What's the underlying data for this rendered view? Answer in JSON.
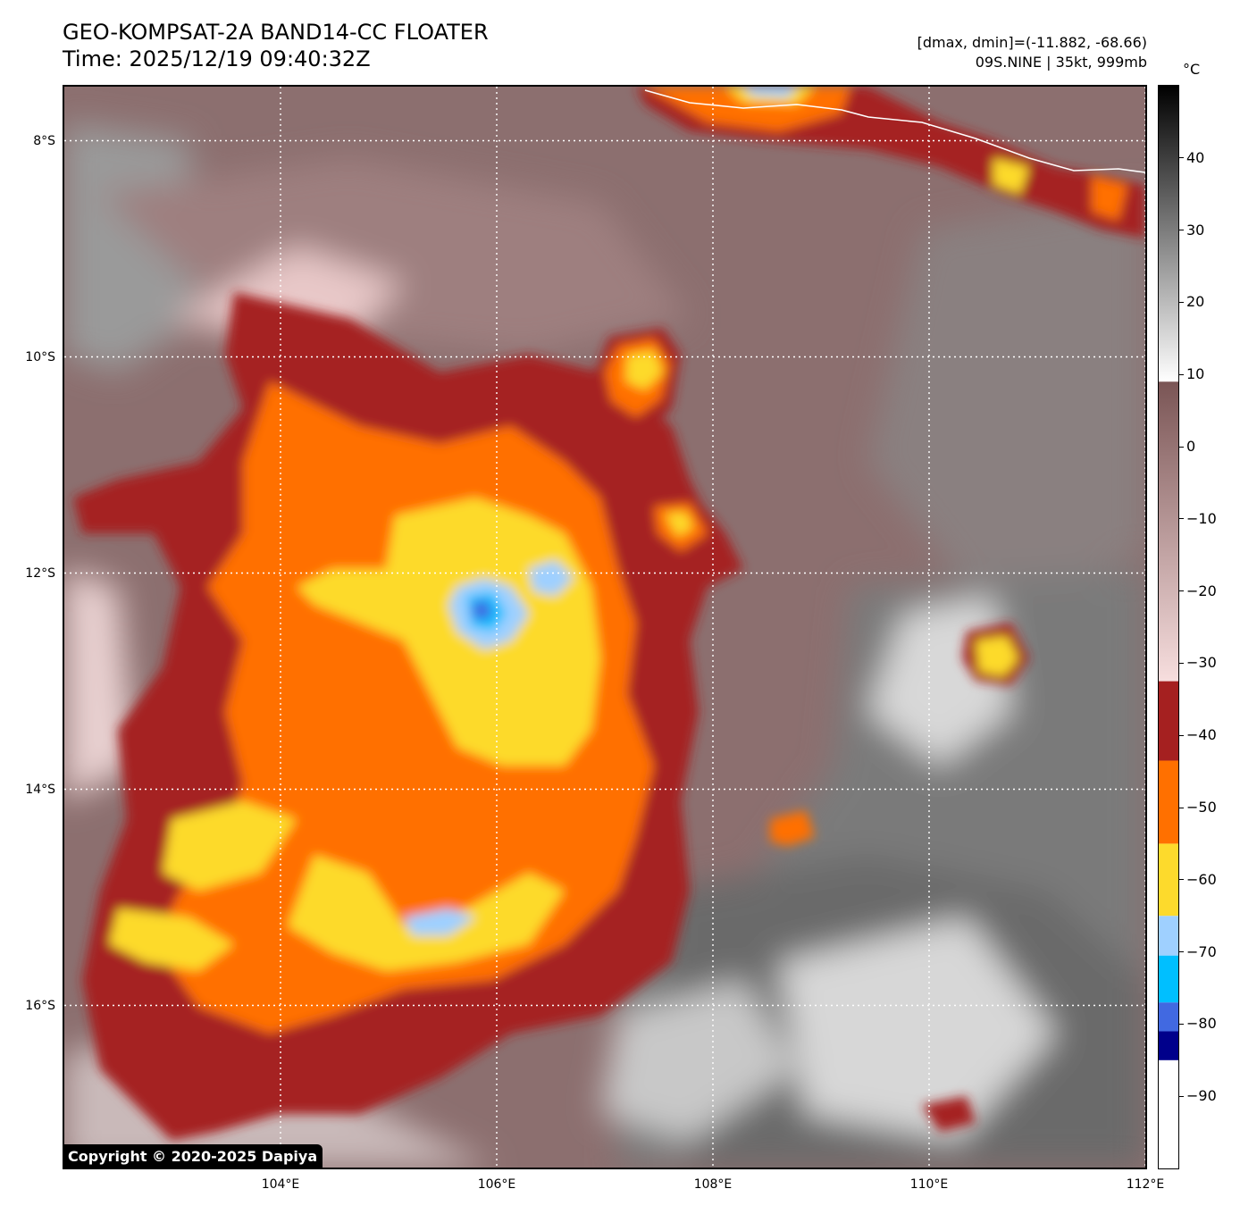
{
  "header": {
    "title_line1": "GEO-KOMPSAT-2A BAND14-CC FLOATER",
    "title_line2": "Time: 2025/12/19 09:40:32Z",
    "info_line1": "[dmax, dmin]=(-11.882, -68.66)",
    "info_line2": "09S.NINE | 35kt, 999mb"
  },
  "axes": {
    "lat_labels": [
      "8°S",
      "10°S",
      "12°S",
      "14°S",
      "16°S"
    ],
    "lat_values": [
      -8,
      -10,
      -12,
      -14,
      -16
    ],
    "lon_labels": [
      "104°E",
      "106°E",
      "108°E",
      "110°E",
      "112°E"
    ],
    "lon_values": [
      104,
      106,
      108,
      110,
      112
    ],
    "lat_range": [
      -17.5,
      -7.5
    ],
    "lon_range": [
      102,
      112
    ],
    "grid": "dotted white"
  },
  "colorbar": {
    "unit": "°C",
    "tick_labels": [
      "40",
      "30",
      "20",
      "10",
      "0",
      "−10",
      "−20",
      "−30",
      "−40",
      "−50",
      "−60",
      "−70",
      "−80",
      "−90"
    ],
    "tick_values": [
      40,
      30,
      20,
      10,
      0,
      -10,
      -20,
      -30,
      -40,
      -50,
      -60,
      -70,
      -80,
      -90
    ],
    "range": [
      -100,
      50
    ],
    "segments": [
      {
        "from": -100,
        "to": -85,
        "color": "#ffffff"
      },
      {
        "from": -85,
        "to": -81,
        "color": "#00008b"
      },
      {
        "from": -81,
        "to": -77,
        "color": "#4169e1"
      },
      {
        "from": -77,
        "to": -70.5,
        "color": "#00bfff"
      },
      {
        "from": -70.5,
        "to": -65,
        "color": "#9fd0ff"
      },
      {
        "from": -65,
        "to": -55,
        "color": "#fdda2c"
      },
      {
        "from": -55,
        "to": -43.5,
        "color": "#ff7000"
      },
      {
        "from": -43.5,
        "to": -32.5,
        "color": "#a52020"
      }
    ],
    "gradient_ir": {
      "from": -32.5,
      "to": 9,
      "top_color": "#7a5555",
      "bottom_color": "#f7dede"
    },
    "gradient_gray": {
      "from": 9,
      "to": 50,
      "top_color": "#000000",
      "bottom_color": "#ffffff"
    }
  },
  "copyright": "Copyright © 2020-2025 Dapiya"
}
